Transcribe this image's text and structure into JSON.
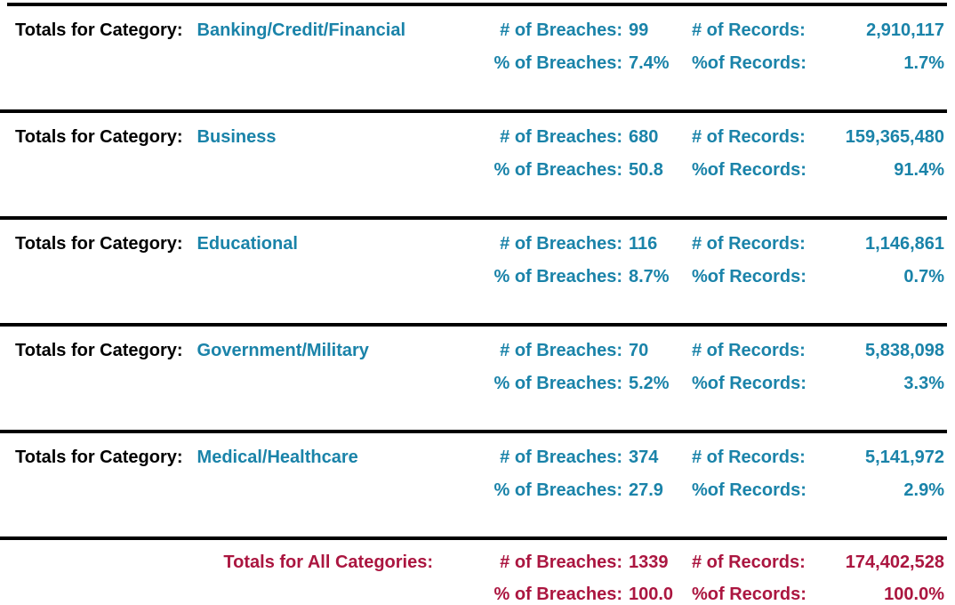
{
  "report": {
    "labels": {
      "category_row": "Totals for Category:",
      "breaches_count": "# of Breaches:",
      "breaches_pct": "% of Breaches:",
      "records_count": "# of Records:",
      "records_pct": "%of Records:"
    },
    "categories": [
      {
        "name": "Banking/Credit/Financial",
        "breaches": "99",
        "breaches_pct": "7.4%",
        "records": "2,910,117",
        "records_pct": "1.7%"
      },
      {
        "name": "Business",
        "breaches": "680",
        "breaches_pct": "50.8",
        "records": "159,365,480",
        "records_pct": "91.4%"
      },
      {
        "name": "Educational",
        "breaches": "116",
        "breaches_pct": "8.7%",
        "records": "1,146,861",
        "records_pct": "0.7%"
      },
      {
        "name": "Government/Military",
        "breaches": "70",
        "breaches_pct": "5.2%",
        "records": "5,838,098",
        "records_pct": "3.3%"
      },
      {
        "name": "Medical/Healthcare",
        "breaches": "374",
        "breaches_pct": "27.9",
        "records": "5,141,972",
        "records_pct": "2.9%"
      }
    ],
    "totals": {
      "label": "Totals for All Categories:",
      "breaches": "1339",
      "breaches_pct": "100.0",
      "records": "174,402,528",
      "records_pct": "100.0%"
    },
    "colors": {
      "category_accent": "#1a83a9",
      "totals_accent": "#ab1640",
      "rule": "#000000",
      "static_label": "#000000"
    }
  }
}
